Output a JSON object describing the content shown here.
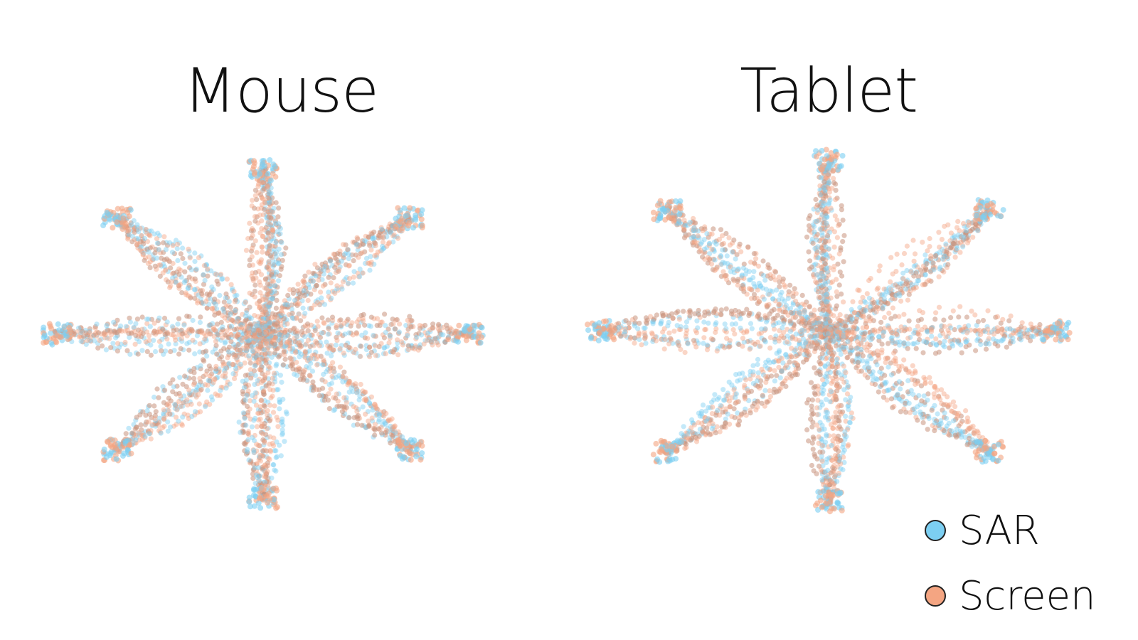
{
  "chart_data": [
    {
      "type": "scatter",
      "title": "Mouse",
      "description_series": [
        "SAR",
        "Screen"
      ],
      "spokes": 8,
      "directions_deg": [
        0,
        45,
        90,
        135,
        180,
        225,
        270,
        315
      ]
    },
    {
      "type": "scatter",
      "title": "Tablet",
      "spokes": 8,
      "directions_deg": [
        0,
        45,
        90,
        135,
        180,
        225,
        270,
        315
      ]
    }
  ],
  "legend": {
    "items": [
      {
        "label": "SAR",
        "color": "#7ccff2"
      },
      {
        "label": "Screen",
        "color": "#f4a582"
      }
    ]
  },
  "colors": {
    "sar": "#7ccff2",
    "screen": "#f4a582",
    "overlap": "#c9937e"
  }
}
